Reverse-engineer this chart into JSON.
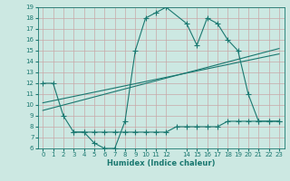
{
  "xlabel": "Humidex (Indice chaleur)",
  "bg_color": "#cce8e2",
  "grid_color": "#b8d8d2",
  "line_color": "#1a7870",
  "xlim": [
    -0.5,
    23.5
  ],
  "ylim": [
    6,
    19
  ],
  "xticks": [
    0,
    1,
    2,
    3,
    4,
    5,
    6,
    7,
    8,
    9,
    10,
    11,
    12,
    14,
    15,
    16,
    17,
    18,
    19,
    20,
    21,
    22,
    23
  ],
  "yticks": [
    6,
    7,
    8,
    9,
    10,
    11,
    12,
    13,
    14,
    15,
    16,
    17,
    18,
    19
  ],
  "series1_x": [
    0,
    1,
    2,
    3,
    4,
    5,
    6,
    7,
    8,
    9,
    10,
    11,
    12,
    14,
    15,
    16,
    17,
    18,
    19,
    20,
    21,
    22,
    23
  ],
  "series1_y": [
    12,
    12,
    9,
    7.5,
    7.5,
    6.5,
    6.0,
    6.0,
    8.5,
    15,
    18,
    18.5,
    19,
    17.5,
    15.5,
    18,
    17.5,
    16,
    15,
    11,
    8.5,
    8.5,
    8.5
  ],
  "series2_x": [
    3,
    4,
    5,
    6,
    7,
    8,
    9,
    10,
    11,
    12,
    13,
    14,
    15,
    16,
    17,
    18,
    19,
    20,
    21,
    22,
    23
  ],
  "series2_y": [
    7.5,
    7.5,
    7.5,
    7.5,
    7.5,
    7.5,
    7.5,
    7.5,
    7.5,
    7.5,
    8.0,
    8.0,
    8.0,
    8.0,
    8.0,
    8.5,
    8.5,
    8.5,
    8.5,
    8.5,
    8.5
  ],
  "series3_x": [
    0,
    23
  ],
  "series3_y": [
    9.5,
    15.2
  ],
  "series4_x": [
    0,
    23
  ],
  "series4_y": [
    10.2,
    14.7
  ]
}
